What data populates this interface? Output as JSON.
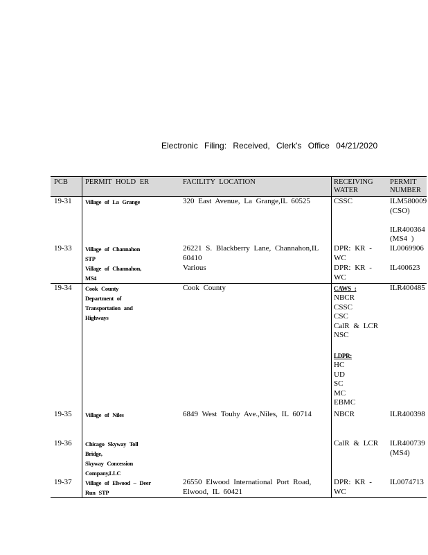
{
  "header": "Electronic    Filing:    Received,     Clerk's   Office   04/21/2020",
  "columns": [
    "PCB",
    "PERMIT    HOLD ER",
    "FACILITY    LOCATION",
    "RECEIVING\nWATER",
    "PERMIT\nNUMBER"
  ],
  "rows": [
    {
      "pcb": "19-31",
      "holder": "Village        of La   Grange",
      "location": "320 East Avenue,  La Grange,IL     60525",
      "water": "CSSC",
      "permit": "ILM580009\n(CSO)\n\nILR400364\n(MS4  )"
    },
    {
      "pcb": "19-33",
      "holder": "Village        of  Channahon\nSTP",
      "location": "26221 S. Blackberry   Lane, Channahon,IL\n60410",
      "water": "DPR:  KR -\nWC",
      "permit": "IL0069906"
    },
    {
      "pcb": "",
      "holder": "Village        of  Channahon,\nMS4",
      "location": "Various",
      "water": "DPR:  KR -\nWC",
      "permit": "IL400623"
    },
    {
      "pcb": "19-34",
      "holder": "Cook      County\nDepartment           of\nTransportation            and\nHighways",
      "location": "Cook   County",
      "water_heading_1": "CAWS     :",
      "water": "NBCR\nCSSC\nCSC\nCalR   &  LCR\nNSC",
      "water_heading_2": "LDPR:",
      "water_2": "HC\nUD\nSC\nMC\nEBMC",
      "permit": "ILR400485"
    },
    {
      "pcb": "19-35",
      "holder": "Village       of   Niles",
      "location": "6849  West  Touhy  Ave.,Niles,    IL  60714",
      "water": "NBCR",
      "permit": "ILR400398"
    },
    {
      "pcb": "19-36",
      "holder": "Chicago          Skyway          Toll\nBridge,\nSkyway         Concession\nCompany,LLC",
      "location": "",
      "water": "CalR   &  LCR",
      "permit": "ILR400739\n(MS4)"
    },
    {
      "pcb": "19-37",
      "holder": "Village       of  Elwood        – Deer\nRun     STP",
      "location": "26550  Elwood  International   Port  Road,\nElwood,   IL  60421",
      "water": "DPR:  KR -\nWC",
      "permit": "IL0074713"
    }
  ]
}
